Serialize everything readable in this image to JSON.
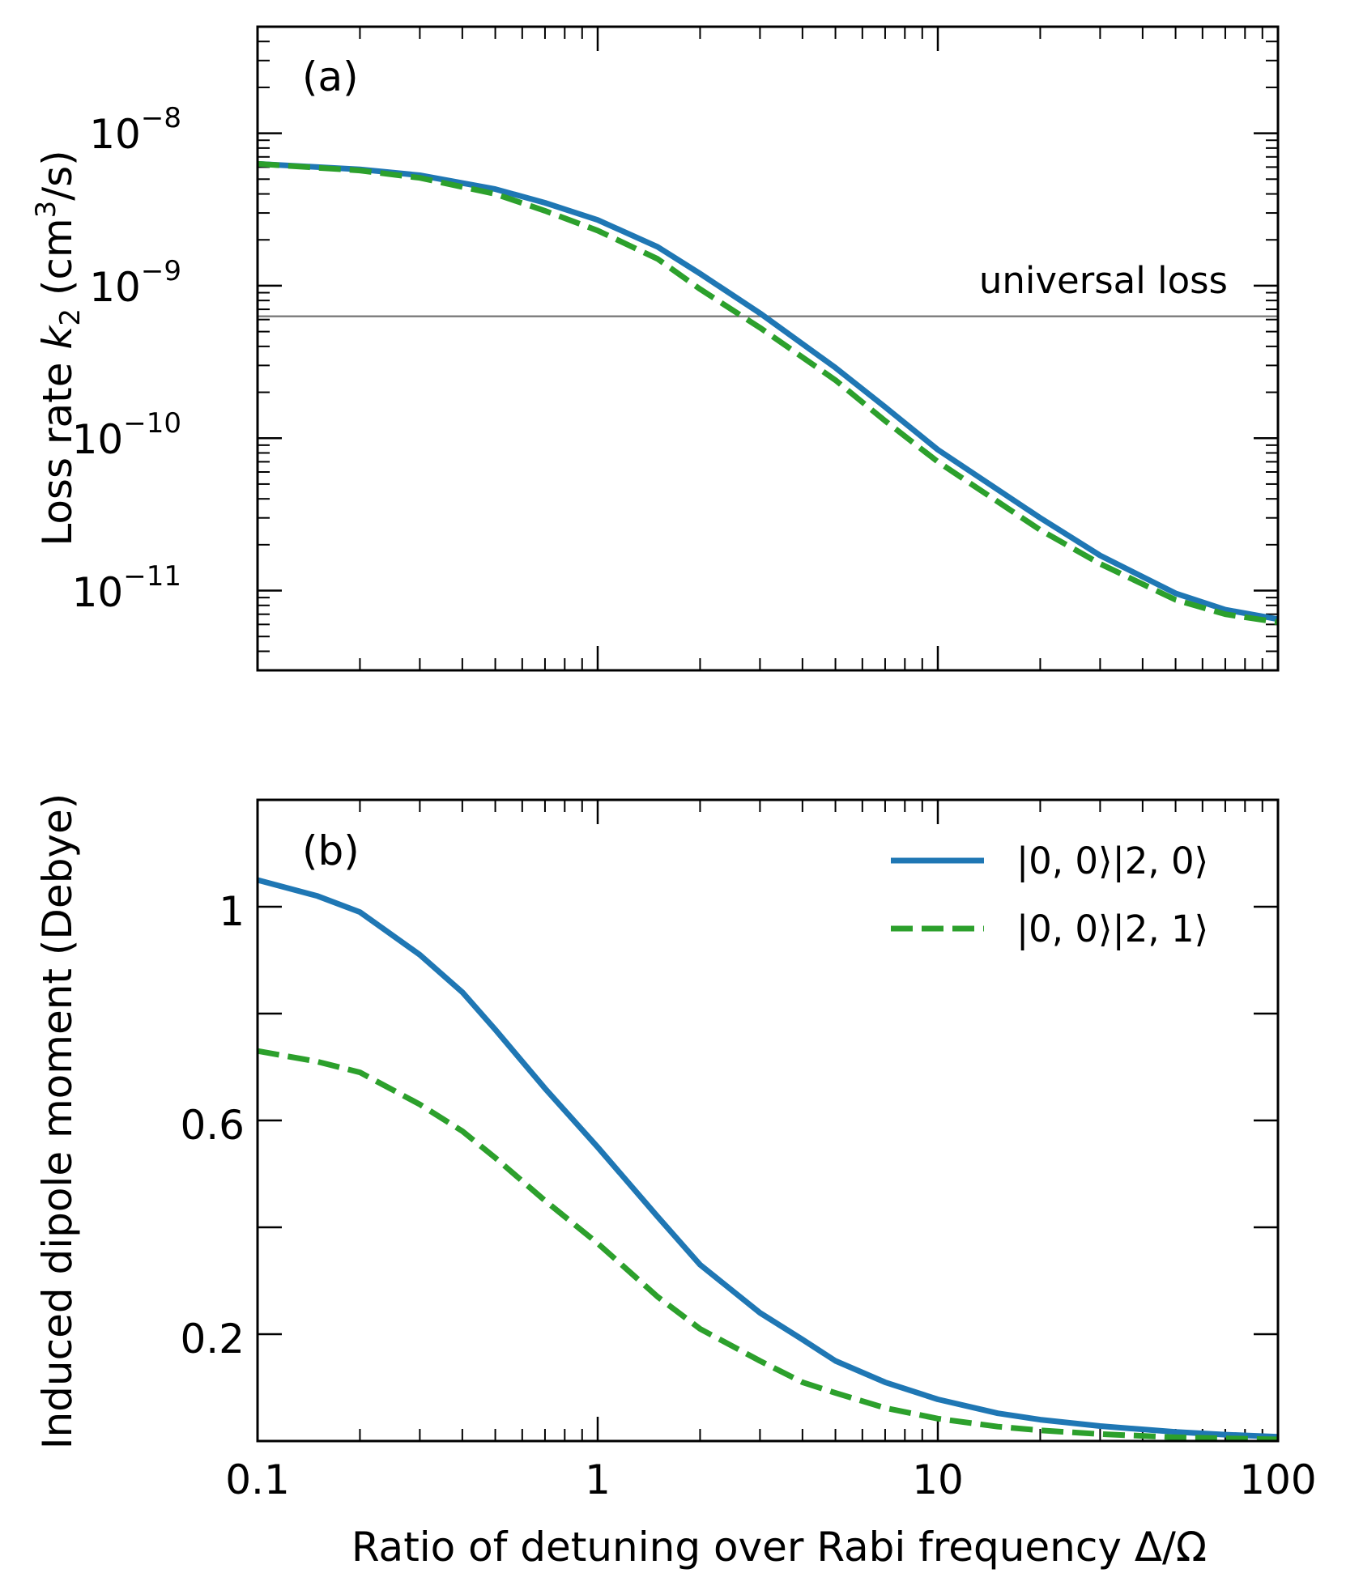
{
  "chart_data": [
    {
      "panel": "(a)",
      "type": "line",
      "xscale": "log",
      "yscale": "log",
      "xlim": [
        0.1,
        100
      ],
      "ylim": [
        3e-12,
        5e-08
      ],
      "ylabel": "Loss rate k_2 (cm^3/s)",
      "ylabel_parts": {
        "pre": "Loss rate ",
        "k": "k",
        "sub": "2",
        "mid": " (cm",
        "sup": "3",
        "post": "/s)"
      },
      "yticks": [
        {
          "value": 1e-08,
          "base": "10",
          "exp": "−8"
        },
        {
          "value": 1e-09,
          "base": "10",
          "exp": "−9"
        },
        {
          "value": 1e-10,
          "base": "10",
          "exp": "−10"
        },
        {
          "value": 1e-11,
          "base": "10",
          "exp": "−11"
        }
      ],
      "reference_line": {
        "value": 6.3e-10,
        "label": "universal loss",
        "color": "#808080"
      },
      "series": [
        {
          "name": "|0, 0⟩|2, 0⟩",
          "color": "#1f77b4",
          "style": "solid",
          "x": [
            0.1,
            0.2,
            0.3,
            0.5,
            0.7,
            1,
            1.5,
            2,
            3,
            5,
            7,
            10,
            20,
            30,
            50,
            70,
            100
          ],
          "y": [
            6.3e-09,
            5.8e-09,
            5.3e-09,
            4.3e-09,
            3.5e-09,
            2.7e-09,
            1.8e-09,
            1.2e-09,
            6.6e-10,
            2.9e-10,
            1.6e-10,
            8.4e-11,
            3e-11,
            1.7e-11,
            9.6e-12,
            7.5e-12,
            6.5e-12
          ]
        },
        {
          "name": "|0, 0⟩|2, 1⟩",
          "color": "#2ca02c",
          "style": "dashed",
          "x": [
            0.1,
            0.2,
            0.3,
            0.5,
            0.7,
            1,
            1.5,
            2,
            3,
            5,
            7,
            10,
            20,
            30,
            50,
            70,
            100
          ],
          "y": [
            6.3e-09,
            5.7e-09,
            5.1e-09,
            4e-09,
            3.1e-09,
            2.3e-09,
            1.5e-09,
            9.5e-10,
            5.3e-10,
            2.4e-10,
            1.3e-10,
            7e-11,
            2.5e-11,
            1.5e-11,
            8.7e-12,
            7e-12,
            6.2e-12
          ]
        }
      ]
    },
    {
      "panel": "(b)",
      "type": "line",
      "xscale": "log",
      "yscale": "linear",
      "xlim": [
        0.1,
        100
      ],
      "ylim": [
        0,
        1.2
      ],
      "xlabel": "Ratio of detuning over Rabi frequency Δ/Ω",
      "ylabel": "Induced dipole moment (Debye)",
      "xtick_labels": [
        {
          "value": 0.1,
          "label": "0.1"
        },
        {
          "value": 1,
          "label": "1"
        },
        {
          "value": 10,
          "label": "10"
        },
        {
          "value": 100,
          "label": "100"
        }
      ],
      "ytick_labels": [
        {
          "value": 1,
          "label": "1"
        },
        {
          "value": 0.6,
          "label": "0.6"
        },
        {
          "value": 0.2,
          "label": "0.2"
        }
      ],
      "yticks_major": [
        0.2,
        0.4,
        0.6,
        0.8,
        1.0
      ],
      "legend_position": "top-right",
      "series": [
        {
          "name": "|0, 0⟩|2, 0⟩",
          "color": "#1f77b4",
          "style": "solid",
          "x": [
            0.1,
            0.15,
            0.2,
            0.3,
            0.4,
            0.5,
            0.7,
            1,
            1.5,
            2,
            3,
            4,
            5,
            7,
            10,
            15,
            20,
            30,
            50,
            70,
            100
          ],
          "y": [
            1.05,
            1.02,
            0.99,
            0.91,
            0.84,
            0.77,
            0.66,
            0.55,
            0.42,
            0.33,
            0.24,
            0.19,
            0.15,
            0.11,
            0.078,
            0.052,
            0.04,
            0.028,
            0.017,
            0.012,
            0.008
          ]
        },
        {
          "name": "|0, 0⟩|2, 1⟩",
          "color": "#2ca02c",
          "style": "dashed",
          "x": [
            0.1,
            0.15,
            0.2,
            0.3,
            0.4,
            0.5,
            0.7,
            1,
            1.5,
            2,
            3,
            4,
            5,
            7,
            10,
            15,
            20,
            30,
            50,
            70,
            100
          ],
          "y": [
            0.73,
            0.71,
            0.69,
            0.63,
            0.58,
            0.53,
            0.45,
            0.37,
            0.27,
            0.21,
            0.15,
            0.11,
            0.09,
            0.062,
            0.042,
            0.027,
            0.02,
            0.013,
            0.007,
            0.005,
            0.003
          ]
        }
      ]
    }
  ]
}
